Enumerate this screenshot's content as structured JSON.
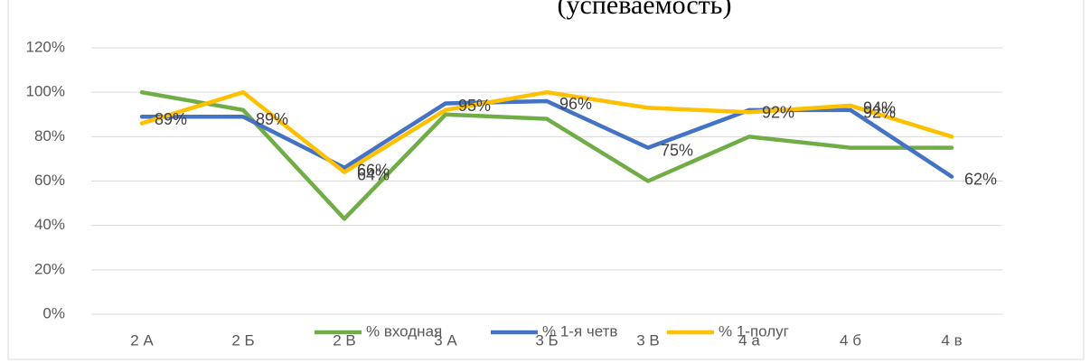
{
  "chart_data": {
    "type": "line",
    "title": "(успеваемость)",
    "categories": [
      "2 А",
      "2 Б",
      "2 В",
      "3 А",
      "3 Б",
      "3 В",
      "4 а",
      "4 б",
      "4 в"
    ],
    "series": [
      {
        "name": "% входная",
        "color": "#70ad47",
        "values": [
          100,
          92,
          43,
          90,
          88,
          60,
          80,
          75,
          75
        ]
      },
      {
        "name": "% 1-я четв",
        "color": "#4472c4",
        "values": [
          89,
          89,
          66,
          95,
          96,
          75,
          92,
          92,
          62
        ],
        "value_labels": [
          "89%",
          "89%",
          "66%",
          "95%",
          "96%",
          "75%",
          "92%",
          "92%",
          "62%"
        ]
      },
      {
        "name": "% 1-полуг",
        "color": "#ffc000",
        "values": [
          86,
          100,
          64,
          92,
          100,
          93,
          91,
          94,
          80
        ],
        "value_labels": [
          null,
          null,
          "64%",
          null,
          null,
          null,
          null,
          "94%",
          null
        ]
      }
    ],
    "ylim": [
      0,
      120
    ],
    "yticks": [
      {
        "value": 0,
        "label": "0%"
      },
      {
        "value": 20,
        "label": "20%"
      },
      {
        "value": 40,
        "label": "40%"
      },
      {
        "value": 60,
        "label": "60%"
      },
      {
        "value": 80,
        "label": "80%"
      },
      {
        "value": 100,
        "label": "100%"
      },
      {
        "value": 120,
        "label": "120%"
      }
    ],
    "grid": true,
    "legend": "bottom"
  }
}
